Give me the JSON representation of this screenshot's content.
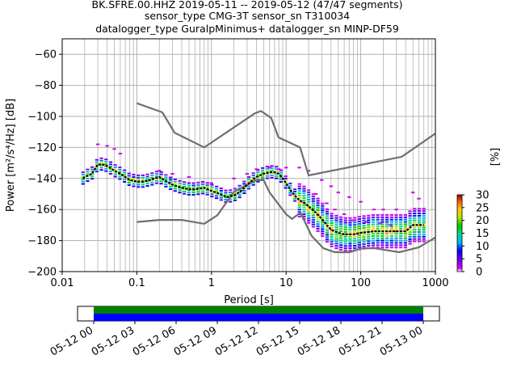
{
  "header": {
    "line1": "BK.SFRE.00.HHZ   2019-05-11 -- 2019-05-12  (47/47 segments)",
    "line2": "sensor_type CMG-3T sensor_sn T310034",
    "line3": "datalogger_type GuralpMinimus+ datalogger_sn MINP-DF59"
  },
  "colors": {
    "noise_models": "#6e6e6e",
    "mode_line": "#000000",
    "coverage_top": "#008000",
    "coverage_bottom": "#0000ff",
    "grid": "#b0b0b0"
  },
  "chart_data": [
    {
      "type": "heatmap",
      "title": "",
      "xlabel": "Period [s]",
      "ylabel": "Power [m²/s⁴/Hz] [dB]",
      "xscale": "log",
      "xlim": [
        0.01,
        1000
      ],
      "ylim": [
        -200,
        -50
      ],
      "xticks": [
        "0.01",
        "0.1",
        "1",
        "10",
        "100",
        "1000"
      ],
      "yticks": [
        "−60",
        "−80",
        "−100",
        "−120",
        "−140",
        "−160",
        "−180",
        "−200"
      ],
      "grid": true,
      "colorbar": {
        "label": "[%]",
        "ticks": [
          "0",
          "5",
          "10",
          "15",
          "20",
          "25",
          "30"
        ],
        "range": [
          0,
          30
        ],
        "colormap": "pqlx"
      },
      "series": [
        {
          "name": "",
          "style": "noise-model",
          "x": [
            0.1,
            0.22,
            0.32,
            0.8,
            3.8,
            4.6,
            6.3,
            7.9,
            15.4,
            20,
            354.8,
            1000
          ],
          "y": [
            -91.5,
            -97.4,
            -110.5,
            -120,
            -98,
            -96.5,
            -101,
            -113.5,
            -120,
            -138,
            -126,
            -111
          ]
        },
        {
          "name": "",
          "style": "noise-model",
          "x": [
            0.1,
            0.2,
            0.4,
            0.8,
            1.2,
            2,
            4,
            5,
            6,
            10,
            12,
            15.6,
            21.9,
            31.6,
            45,
            70.8,
            101.2,
            154.5,
            328.6,
            600,
            1000
          ],
          "y": [
            -168,
            -166.7,
            -166.7,
            -169.2,
            -163.7,
            -148.6,
            -141.1,
            -141.1,
            -149,
            -163,
            -166,
            -162,
            -177,
            -185,
            -187.5,
            -187.5,
            -185,
            -185,
            -187.5,
            -184.4,
            -178
          ]
        },
        {
          "name": "",
          "style": "mode",
          "x": [
            0.019,
            0.02,
            0.025,
            0.03,
            0.035,
            0.04,
            0.05,
            0.06,
            0.07,
            0.08,
            0.1,
            0.12,
            0.15,
            0.2,
            0.25,
            0.3,
            0.4,
            0.5,
            0.6,
            0.8,
            1,
            1.3,
            1.6,
            2,
            2.5,
            3,
            4,
            5,
            6,
            7,
            8,
            9,
            10,
            12,
            15,
            18,
            20,
            25,
            30,
            35,
            40,
            50,
            60,
            80,
            100,
            150,
            200,
            300,
            400,
            500,
            700
          ],
          "y": [
            -140,
            -139,
            -137,
            -131,
            -131,
            -132,
            -135,
            -137,
            -139,
            -141,
            -142,
            -142,
            -141,
            -139,
            -142,
            -144,
            -146,
            -147,
            -147,
            -146,
            -148,
            -150,
            -152,
            -151,
            -148,
            -144,
            -139,
            -137,
            -136,
            -136,
            -137,
            -140,
            -143,
            -149,
            -154,
            -156,
            -158,
            -162,
            -166,
            -170,
            -173,
            -175,
            -176,
            -176,
            -175,
            -174,
            -174,
            -174,
            -174,
            -170,
            -170
          ]
        }
      ]
    },
    {
      "type": "bar",
      "title": "",
      "xlabel": "",
      "ylabel": "",
      "ticks": [
        "05-12 00",
        "05-12 03",
        "05-12 06",
        "05-12 09",
        "05-12 12",
        "05-12 15",
        "05-12 18",
        "05-12 21",
        "05-13 00"
      ],
      "series": [
        {
          "name": "",
          "values": [
            1
          ],
          "range": [
            0,
            24
          ]
        },
        {
          "name": "",
          "values": [
            1
          ],
          "range": [
            0,
            24
          ]
        }
      ]
    }
  ]
}
